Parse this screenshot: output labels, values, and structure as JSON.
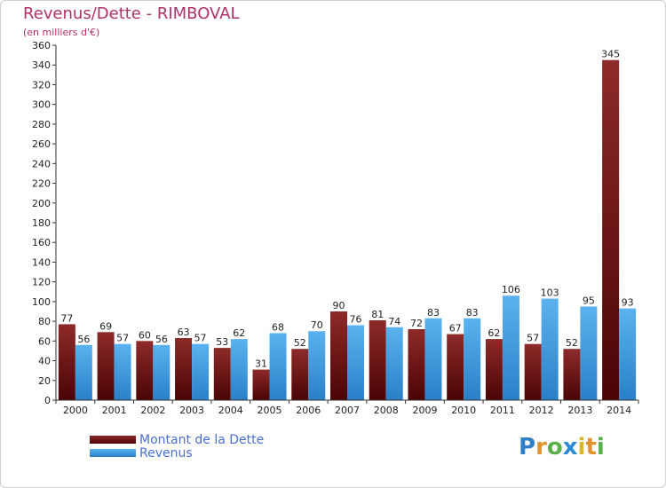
{
  "header": {
    "title": "Revenus/Dette - RIMBOVAL",
    "subtitle": "(en milliers d'€)"
  },
  "legend": {
    "items": [
      {
        "label": "Montant de la Dette",
        "color": "#7a1414"
      },
      {
        "label": "Revenus",
        "color": "#3d99e0"
      }
    ]
  },
  "logo": {
    "letters": [
      {
        "ch": "P",
        "color": "#2f7fc8"
      },
      {
        "ch": "r",
        "color": "#e0932e"
      },
      {
        "ch": "o",
        "color": "#5ab04a"
      },
      {
        "ch": "x",
        "color": "#2a8ad6"
      },
      {
        "ch": "i",
        "color": "#d8b82a"
      },
      {
        "ch": "t",
        "color": "#e0932e"
      },
      {
        "ch": "i",
        "color": "#5ab04a"
      }
    ]
  },
  "chart_data": {
    "type": "bar",
    "categories": [
      "2000",
      "2001",
      "2002",
      "2003",
      "2004",
      "2005",
      "2006",
      "2007",
      "2008",
      "2009",
      "2010",
      "2011",
      "2012",
      "2013",
      "2014"
    ],
    "series": [
      {
        "name": "Montant de la Dette",
        "values": [
          77,
          69,
          60,
          63,
          53,
          31,
          52,
          90,
          81,
          72,
          67,
          62,
          57,
          52,
          345
        ],
        "color": "#7a1414"
      },
      {
        "name": "Revenus",
        "values": [
          56,
          57,
          56,
          57,
          62,
          68,
          70,
          76,
          74,
          83,
          83,
          106,
          103,
          95,
          93
        ],
        "color": "#3d99e0"
      }
    ],
    "ylim": [
      0,
      360
    ],
    "yticks": [
      0,
      20,
      40,
      60,
      80,
      100,
      120,
      140,
      160,
      180,
      200,
      220,
      240,
      260,
      280,
      300,
      320,
      340,
      360
    ],
    "grid": false,
    "legend_position": "bottom-left"
  }
}
